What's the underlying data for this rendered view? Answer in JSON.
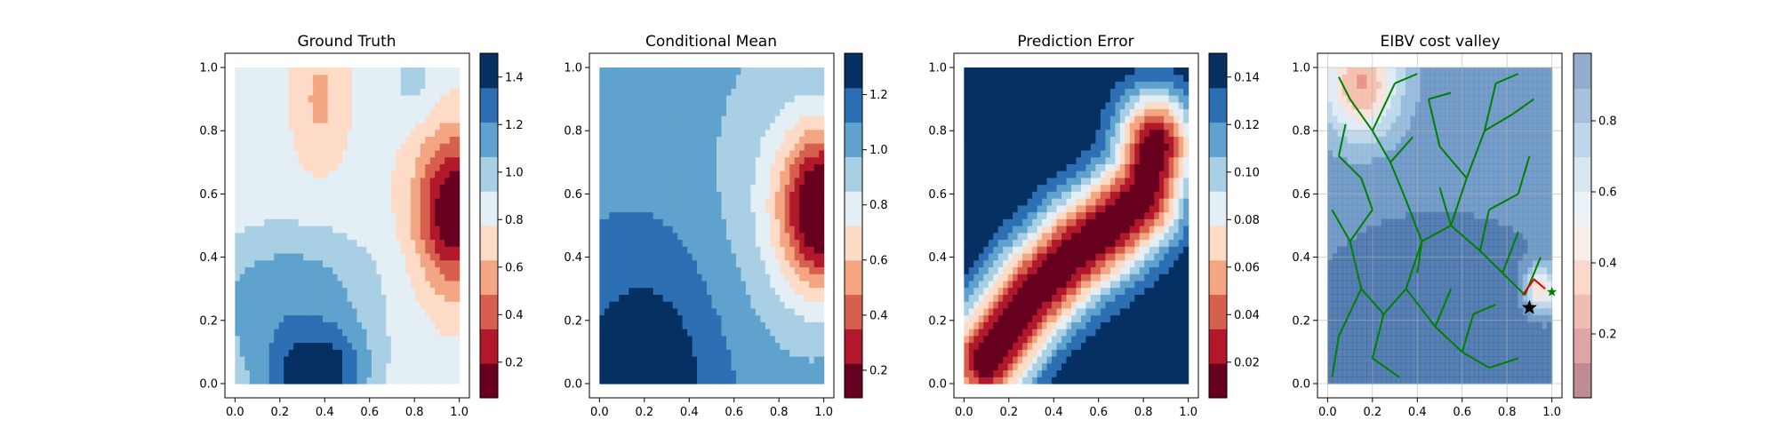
{
  "chart_data": [
    {
      "type": "heatmap",
      "title": "Ground Truth",
      "xlabel": "",
      "ylabel": "",
      "xlim": [
        0.0,
        1.0
      ],
      "ylim": [
        0.0,
        1.0
      ],
      "xticks": [
        "0.0",
        "0.2",
        "0.4",
        "0.6",
        "0.8",
        "1.0"
      ],
      "yticks": [
        "0.0",
        "0.2",
        "0.4",
        "0.6",
        "0.8",
        "1.0"
      ],
      "colormap": "RdBu",
      "colorbar": {
        "min": 0.05,
        "max": 1.5,
        "levels": 10,
        "ticks": [
          "0.2",
          "0.4",
          "0.6",
          "0.8",
          "1.0",
          "1.2",
          "1.4"
        ],
        "tick_values": [
          0.2,
          0.4,
          0.6,
          0.8,
          1.0,
          1.2,
          1.4
        ]
      },
      "field": {
        "base": 0.82,
        "blobs": [
          {
            "x": 0.98,
            "y": 0.55,
            "sx": 0.12,
            "sy": 0.17,
            "a": -0.8
          },
          {
            "x": 0.35,
            "y": 0.02,
            "sx": 0.15,
            "sy": 0.1,
            "a": 0.6
          },
          {
            "x": 0.3,
            "y": 0.3,
            "sx": 0.25,
            "sy": 0.14,
            "a": 0.28
          },
          {
            "x": 0.05,
            "y": 0.15,
            "sx": 0.2,
            "sy": 0.2,
            "a": 0.15
          },
          {
            "x": 0.5,
            "y": 0.1,
            "sx": 0.12,
            "sy": 0.1,
            "a": 0.12
          },
          {
            "x": 0.38,
            "y": 0.9,
            "sx": 0.08,
            "sy": 0.15,
            "a": -0.22
          },
          {
            "x": 0.8,
            "y": 0.95,
            "sx": 0.08,
            "sy": 0.08,
            "a": 0.15
          }
        ]
      }
    },
    {
      "type": "heatmap",
      "title": "Conditional Mean",
      "xlabel": "",
      "ylabel": "",
      "xlim": [
        0.0,
        1.0
      ],
      "ylim": [
        0.0,
        1.0
      ],
      "xticks": [
        "0.0",
        "0.2",
        "0.4",
        "0.6",
        "0.8",
        "1.0"
      ],
      "yticks": [
        "0.0",
        "0.2",
        "0.4",
        "0.6",
        "0.8",
        "1.0"
      ],
      "colormap": "RdBu",
      "colorbar": {
        "min": 0.1,
        "max": 1.35,
        "levels": 10,
        "ticks": [
          "0.2",
          "0.4",
          "0.6",
          "0.8",
          "1.0",
          "1.2"
        ],
        "tick_values": [
          0.2,
          0.4,
          0.6,
          0.8,
          1.0,
          1.2
        ]
      },
      "field": {
        "base": 1.05,
        "blobs": [
          {
            "x": 0.2,
            "y": 0.0,
            "sx": 0.25,
            "sy": 0.3,
            "a": 0.3
          },
          {
            "x": 1.0,
            "y": 0.55,
            "sx": 0.13,
            "sy": 0.17,
            "a": -0.95
          },
          {
            "x": 0.85,
            "y": 0.6,
            "sx": 0.25,
            "sy": 0.35,
            "a": -0.2
          }
        ]
      }
    },
    {
      "type": "heatmap",
      "title": "Prediction Error",
      "xlabel": "",
      "ylabel": "",
      "xlim": [
        0.0,
        1.0
      ],
      "ylim": [
        0.0,
        1.0
      ],
      "xticks": [
        "0.0",
        "0.2",
        "0.4",
        "0.6",
        "0.8",
        "1.0"
      ],
      "yticks": [
        "0.0",
        "0.2",
        "0.4",
        "0.6",
        "0.8",
        "1.0"
      ],
      "colormap": "RdBu",
      "colorbar": {
        "min": 0.005,
        "max": 0.15,
        "levels": 10,
        "ticks": [
          "0.02",
          "0.04",
          "0.06",
          "0.08",
          "0.10",
          "0.12",
          "0.14"
        ],
        "tick_values": [
          0.02,
          0.04,
          0.06,
          0.08,
          0.1,
          0.12,
          0.14
        ]
      },
      "field": {
        "type": "ridge",
        "points": [
          [
            0.1,
            0.08
          ],
          [
            0.3,
            0.28
          ],
          [
            0.5,
            0.42
          ],
          [
            0.65,
            0.5
          ],
          [
            0.8,
            0.6
          ],
          [
            0.85,
            0.75
          ]
        ],
        "width": 0.12,
        "low": 0.005,
        "high": 0.15
      }
    },
    {
      "type": "heatmap",
      "title": "EIBV cost valley",
      "xlabel": "",
      "ylabel": "",
      "xlim": [
        0.0,
        1.0
      ],
      "ylim": [
        0.0,
        1.0
      ],
      "xticks": [
        "0.0",
        "0.2",
        "0.4",
        "0.6",
        "0.8",
        "1.0"
      ],
      "yticks": [
        "0.0",
        "0.2",
        "0.4",
        "0.6",
        "0.8",
        "1.0"
      ],
      "grid": true,
      "colormap": "RdBu",
      "colorbar": {
        "min": 0.02,
        "max": 0.99,
        "levels": 10,
        "ticks": [
          "0.2",
          "0.4",
          "0.6",
          "0.8"
        ],
        "tick_values": [
          0.2,
          0.4,
          0.6,
          0.8
        ]
      },
      "field": {
        "base": 0.85,
        "blobs": [
          {
            "x": 0.15,
            "y": 0.95,
            "sx": 0.12,
            "sy": 0.12,
            "a": -0.55
          },
          {
            "x": 0.5,
            "y": 0.15,
            "sx": 0.4,
            "sy": 0.25,
            "a": 0.15
          },
          {
            "x": 0.95,
            "y": 0.3,
            "sx": 0.05,
            "sy": 0.05,
            "a": -0.5
          }
        ]
      },
      "tree_color": "#008000",
      "path_color": "#e00000",
      "tree_edges": [
        [
          0.05,
          0.15,
          0.15,
          0.3
        ],
        [
          0.15,
          0.3,
          0.1,
          0.45
        ],
        [
          0.1,
          0.45,
          0.02,
          0.55
        ],
        [
          0.15,
          0.3,
          0.25,
          0.22
        ],
        [
          0.25,
          0.22,
          0.35,
          0.3
        ],
        [
          0.35,
          0.3,
          0.42,
          0.45
        ],
        [
          0.42,
          0.45,
          0.35,
          0.58
        ],
        [
          0.35,
          0.58,
          0.28,
          0.7
        ],
        [
          0.28,
          0.7,
          0.2,
          0.8
        ],
        [
          0.2,
          0.8,
          0.1,
          0.9
        ],
        [
          0.1,
          0.9,
          0.05,
          0.97
        ],
        [
          0.2,
          0.8,
          0.3,
          0.95
        ],
        [
          0.42,
          0.45,
          0.55,
          0.5
        ],
        [
          0.55,
          0.5,
          0.62,
          0.65
        ],
        [
          0.62,
          0.65,
          0.7,
          0.8
        ],
        [
          0.7,
          0.8,
          0.75,
          0.95
        ],
        [
          0.62,
          0.65,
          0.5,
          0.75
        ],
        [
          0.5,
          0.75,
          0.45,
          0.9
        ],
        [
          0.55,
          0.5,
          0.68,
          0.42
        ],
        [
          0.68,
          0.42,
          0.78,
          0.35
        ],
        [
          0.78,
          0.35,
          0.88,
          0.28
        ],
        [
          0.25,
          0.22,
          0.2,
          0.08
        ],
        [
          0.2,
          0.08,
          0.32,
          0.02
        ],
        [
          0.35,
          0.3,
          0.48,
          0.18
        ],
        [
          0.48,
          0.18,
          0.6,
          0.1
        ],
        [
          0.6,
          0.1,
          0.72,
          0.05
        ],
        [
          0.72,
          0.05,
          0.85,
          0.08
        ],
        [
          0.48,
          0.18,
          0.55,
          0.3
        ],
        [
          0.05,
          0.15,
          0.02,
          0.02
        ],
        [
          0.1,
          0.45,
          0.2,
          0.55
        ],
        [
          0.2,
          0.55,
          0.15,
          0.65
        ],
        [
          0.68,
          0.42,
          0.72,
          0.55
        ],
        [
          0.72,
          0.55,
          0.85,
          0.6
        ],
        [
          0.85,
          0.6,
          0.9,
          0.72
        ],
        [
          0.78,
          0.35,
          0.85,
          0.48
        ],
        [
          0.6,
          0.1,
          0.65,
          0.22
        ],
        [
          0.65,
          0.22,
          0.75,
          0.25
        ],
        [
          0.3,
          0.95,
          0.4,
          0.98
        ],
        [
          0.45,
          0.9,
          0.55,
          0.92
        ],
        [
          0.75,
          0.95,
          0.85,
          0.98
        ],
        [
          0.7,
          0.8,
          0.82,
          0.85
        ],
        [
          0.82,
          0.85,
          0.92,
          0.9
        ],
        [
          0.15,
          0.65,
          0.05,
          0.72
        ],
        [
          0.05,
          0.72,
          0.08,
          0.82
        ],
        [
          0.42,
          0.45,
          0.4,
          0.35
        ],
        [
          0.55,
          0.5,
          0.5,
          0.62
        ],
        [
          0.88,
          0.28,
          0.95,
          0.4
        ],
        [
          0.28,
          0.7,
          0.38,
          0.78
        ]
      ],
      "path": [
        [
          0.87,
          0.28
        ],
        [
          0.92,
          0.33
        ],
        [
          0.97,
          0.3
        ]
      ],
      "current_position": [
        0.9,
        0.24
      ],
      "target_position": [
        1.0,
        0.29
      ]
    }
  ]
}
